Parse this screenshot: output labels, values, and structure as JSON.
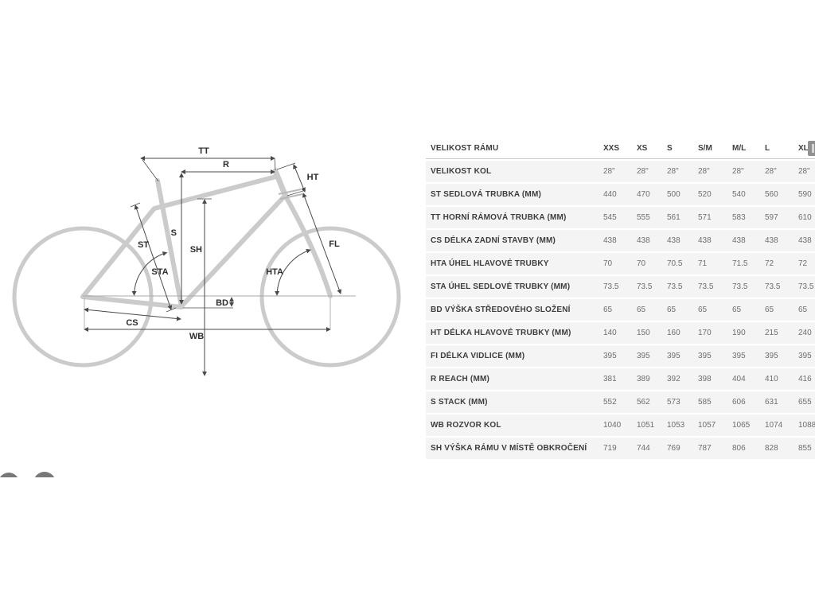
{
  "diagram": {
    "labels": {
      "tt": "TT",
      "r": "R",
      "ht": "HT",
      "s": "S",
      "sh": "SH",
      "st": "ST",
      "sta": "STA",
      "hta": "HTA",
      "fl": "FL",
      "bd": "BD",
      "cs": "CS",
      "wb": "WB"
    },
    "colors": {
      "frame": "#cbcbcb",
      "dimension_line": "#4a4a4a",
      "label_text": "#2e2e2e",
      "baseline": "#a8a8a8"
    }
  },
  "table": {
    "header": {
      "label": "VELIKOST RÁMU",
      "sizes": [
        "XXS",
        "XS",
        "S",
        "S/M",
        "M/L",
        "L",
        "XL"
      ]
    },
    "rows": [
      {
        "label": "VELIKOST KOL",
        "values": [
          "28\"",
          "28\"",
          "28\"",
          "28\"",
          "28\"",
          "28\"",
          "28\""
        ]
      },
      {
        "label": "ST SEDLOVÁ TRUBKA (MM)",
        "values": [
          "440",
          "470",
          "500",
          "520",
          "540",
          "560",
          "590"
        ]
      },
      {
        "label": "TT HORNÍ RÁMOVÁ TRUBKA (MM)",
        "values": [
          "545",
          "555",
          "561",
          "571",
          "583",
          "597",
          "610"
        ]
      },
      {
        "label": "CS DÉLKA ZADNÍ STAVBY (MM)",
        "values": [
          "438",
          "438",
          "438",
          "438",
          "438",
          "438",
          "438"
        ]
      },
      {
        "label": "HTA ÚHEL HLAVOVÉ TRUBKY",
        "values": [
          "70",
          "70",
          "70.5",
          "71",
          "71.5",
          "72",
          "72"
        ]
      },
      {
        "label": "STA ÚHEL SEDLOVÉ TRUBKY (MM)",
        "values": [
          "73.5",
          "73.5",
          "73.5",
          "73.5",
          "73.5",
          "73.5",
          "73.5"
        ]
      },
      {
        "label": "BD VÝŠKA STŘEDOVÉHO SLOŽENÍ",
        "values": [
          "65",
          "65",
          "65",
          "65",
          "65",
          "65",
          "65"
        ]
      },
      {
        "label": "HT DÉLKA HLAVOVÉ TRUBKY (MM)",
        "values": [
          "140",
          "150",
          "160",
          "170",
          "190",
          "215",
          "240"
        ]
      },
      {
        "label": "FI DÉLKA VIDLICE (MM)",
        "values": [
          "395",
          "395",
          "395",
          "395",
          "395",
          "395",
          "395"
        ]
      },
      {
        "label": "R REACH (MM)",
        "values": [
          "381",
          "389",
          "392",
          "398",
          "404",
          "410",
          "416"
        ]
      },
      {
        "label": "S STACK (MM)",
        "values": [
          "552",
          "562",
          "573",
          "585",
          "606",
          "631",
          "655"
        ]
      },
      {
        "label": "WB ROZVOR KOL",
        "values": [
          "1040",
          "1051",
          "1053",
          "1057",
          "1065",
          "1074",
          "1088"
        ]
      },
      {
        "label": "SH VÝŠKA RÁMU V MÍSTĚ OBKROČENÍ",
        "values": [
          "719",
          "744",
          "769",
          "787",
          "806",
          "828",
          "855"
        ]
      }
    ]
  },
  "misc": {
    "corner_button_icon": "grip-bars-icon"
  }
}
